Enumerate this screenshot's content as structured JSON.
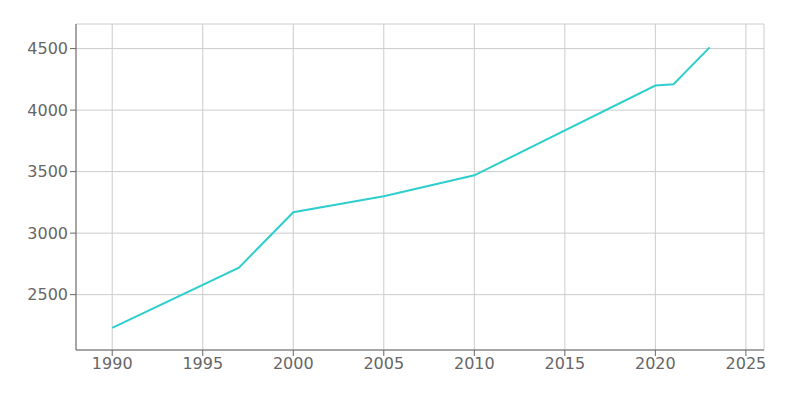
{
  "chart_data": {
    "type": "line",
    "x": [
      1990,
      1997,
      2000,
      2005,
      2010,
      2020,
      2021,
      2023
    ],
    "values": [
      2230,
      2720,
      3170,
      3300,
      3470,
      4200,
      4210,
      4510
    ],
    "color": "#2ECECE",
    "xlim": [
      1988,
      2026
    ],
    "ylim": [
      2050,
      4700
    ],
    "xticks": [
      1990,
      1995,
      2000,
      2005,
      2010,
      2015,
      2020,
      2025
    ],
    "yticks": [
      2500,
      3000,
      3500,
      4000,
      4500
    ],
    "grid": true
  }
}
